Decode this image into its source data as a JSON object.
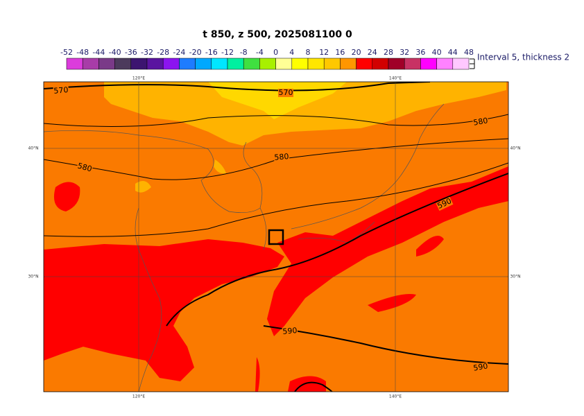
{
  "title": "t 850, z 500, 2025081100 0",
  "colorbar": {
    "ticks": [
      -52,
      -48,
      -44,
      -40,
      -36,
      -32,
      -28,
      -24,
      -20,
      -16,
      -12,
      -8,
      -4,
      0,
      4,
      8,
      12,
      16,
      20,
      24,
      28,
      32,
      36,
      40,
      44,
      48
    ],
    "colors": [
      "#dc3cdc",
      "#a83ca8",
      "#7a3a88",
      "#4c3a5c",
      "#3c1470",
      "#5a14a0",
      "#8c14f0",
      "#1e7cff",
      "#00a8ff",
      "#00e6ff",
      "#00f0a0",
      "#40e040",
      "#a8f000",
      "#ffff96",
      "#ffff00",
      "#ffe600",
      "#ffc800",
      "#ff9600",
      "#ff0000",
      "#d20000",
      "#a00028",
      "#c83264",
      "#ff00ff",
      "#ff82ff",
      "#ffc8ff"
    ]
  },
  "legend_note": "Interval 5, thickness 2",
  "grid_labels": {
    "top": [
      "120°E",
      "140°E"
    ],
    "bottom": [
      "120°E",
      "140°E"
    ],
    "left": [
      "40°N",
      "30°N"
    ],
    "right": [
      "40°N",
      "30°N"
    ]
  },
  "contour_labels": [
    570,
    570,
    580,
    580,
    580,
    590,
    590,
    590
  ]
}
